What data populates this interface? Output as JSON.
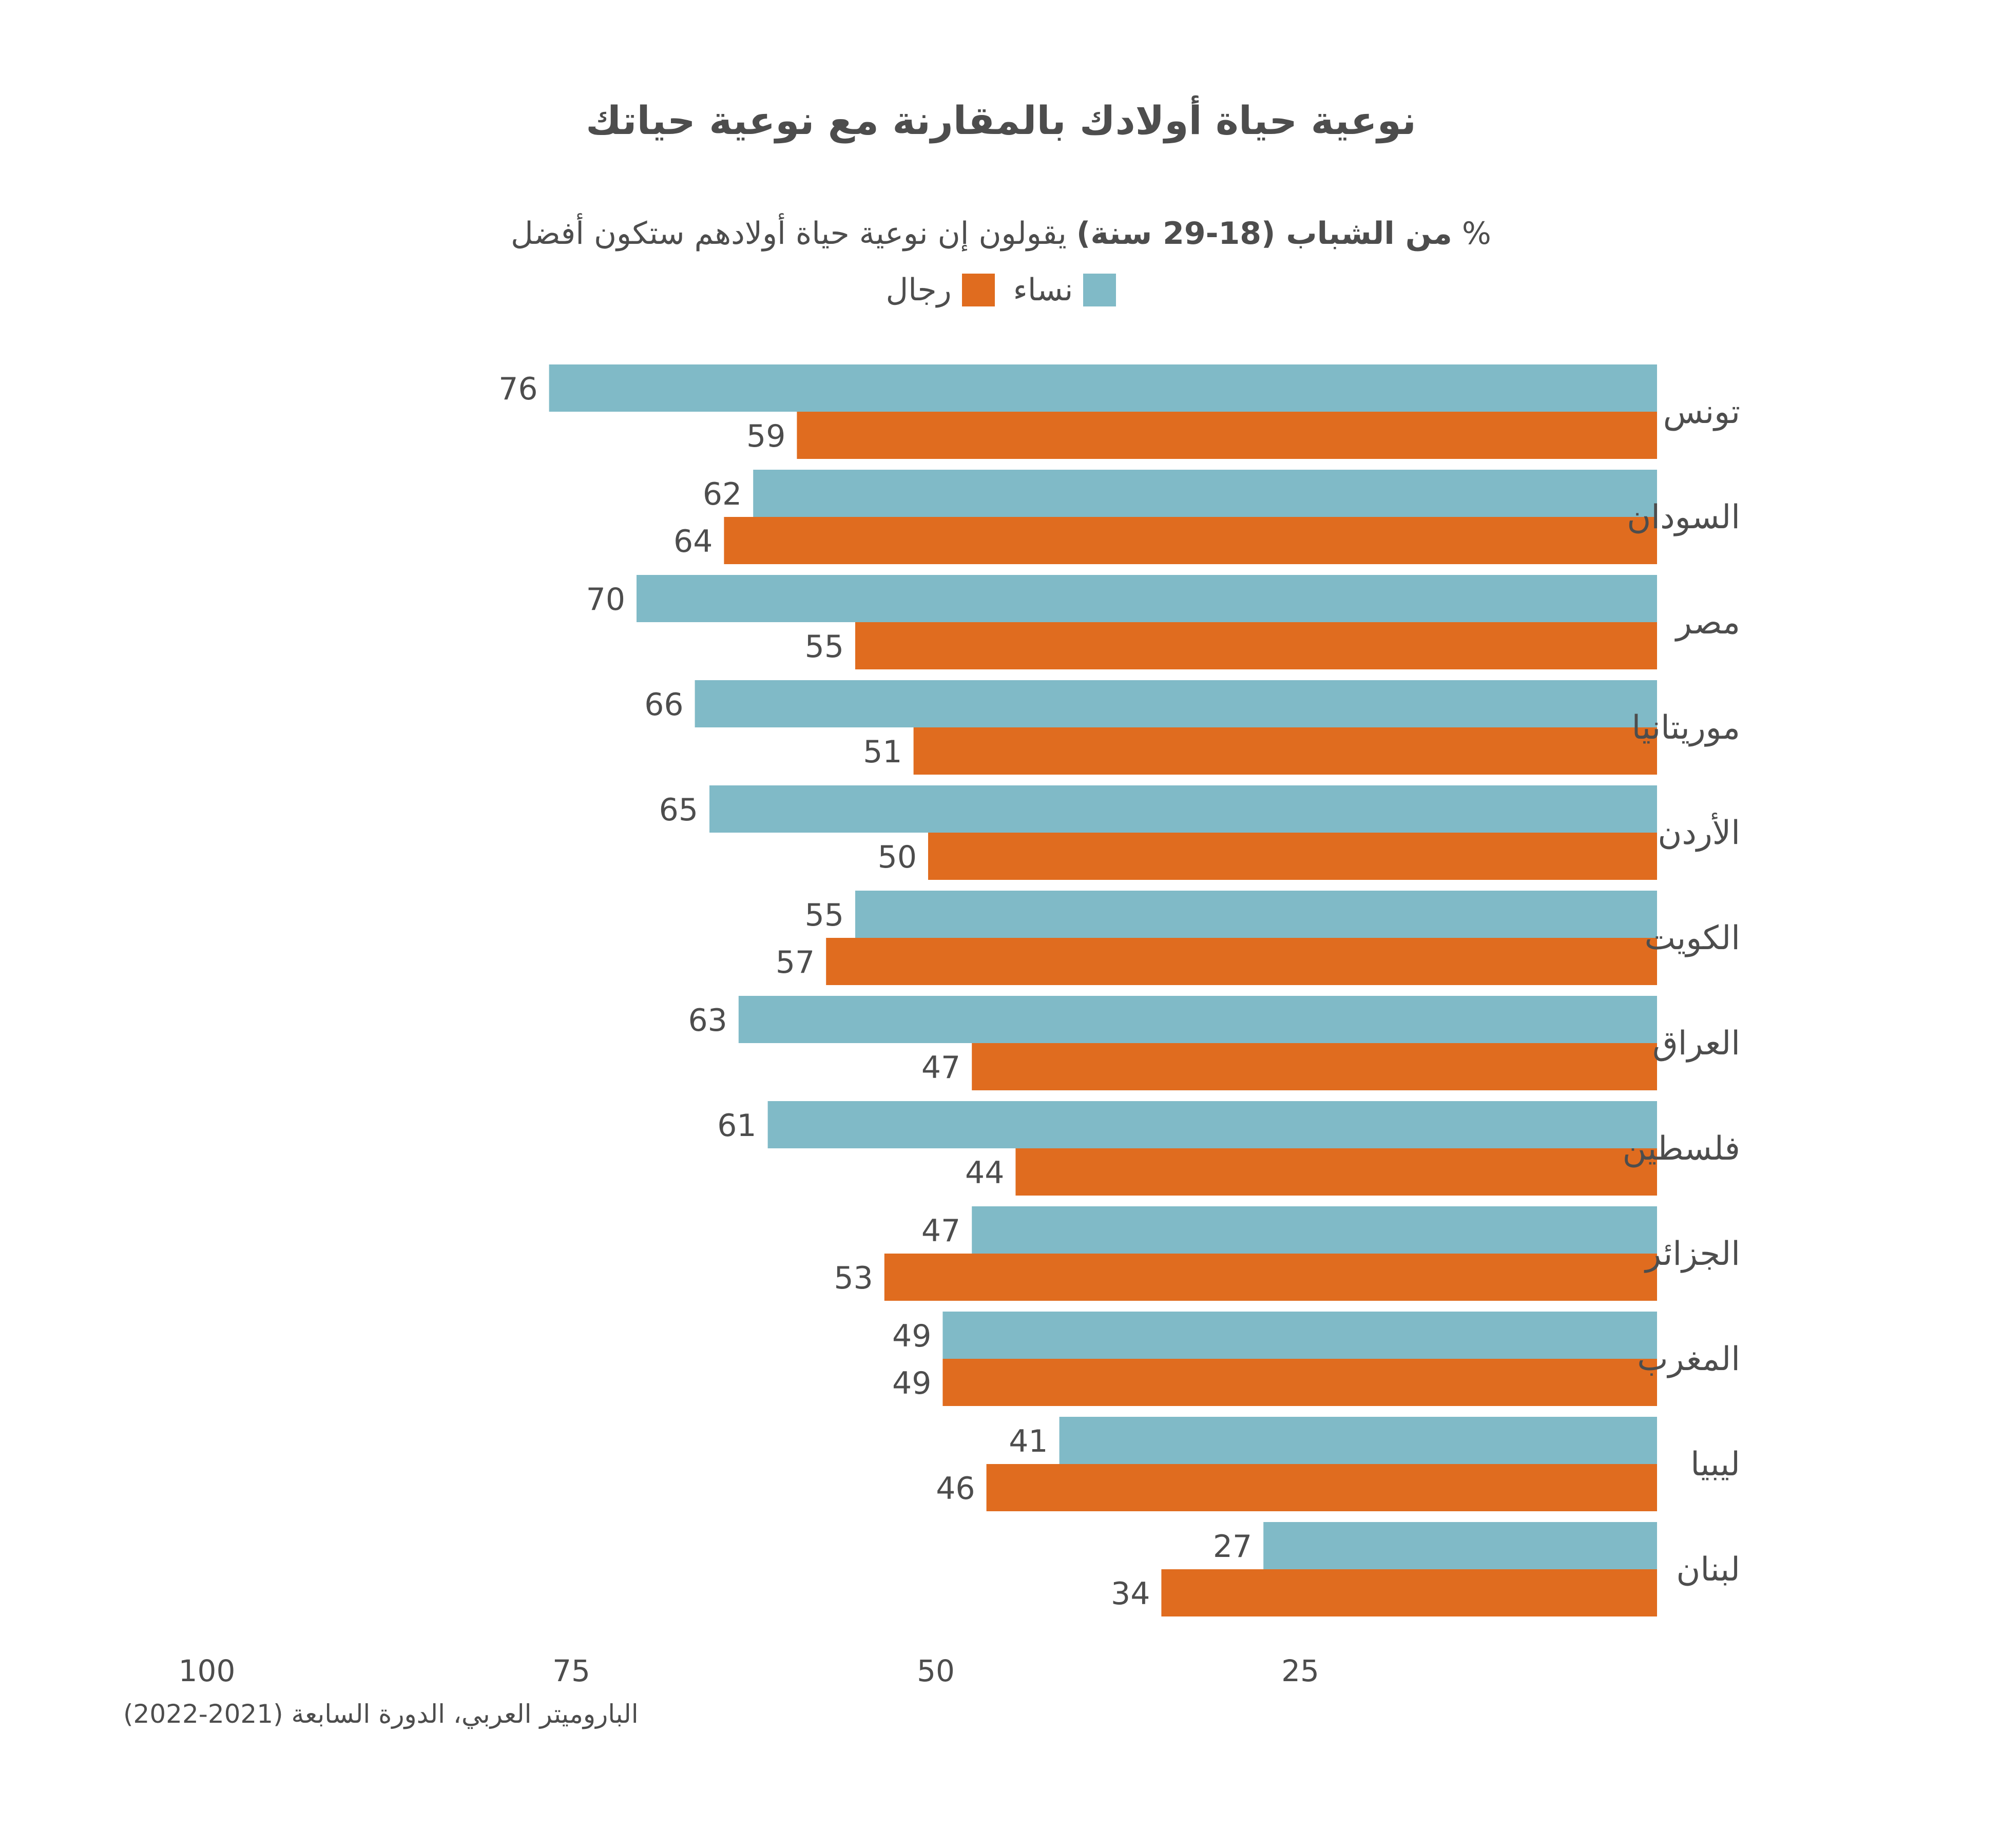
{
  "chart_data": {
    "type": "bar",
    "orientation": "horizontal",
    "title": "نوعية حياة أولادك بالمقارنة مع نوعية حياتك",
    "subtitle": {
      "prefix": "%",
      "bold": "من الشباب (18-29 سنة)",
      "rest": "يقولون إن نوعية حياة أولادهم ستكون أفضل"
    },
    "categories": [
      "تونس",
      "السودان",
      "مصر",
      "موريتانيا",
      "الأردن",
      "الكويت",
      "العراق",
      "فلسطين",
      "الجزائر",
      "المغرب",
      "ليبيا",
      "لبنان"
    ],
    "series": [
      {
        "name": "نساء",
        "color": "#80bac7",
        "values": [
          76,
          62,
          70,
          66,
          65,
          55,
          63,
          61,
          47,
          49,
          41,
          27
        ]
      },
      {
        "name": "رجال",
        "color": "#e06c1f",
        "values": [
          59,
          64,
          55,
          51,
          50,
          57,
          47,
          44,
          53,
          49,
          46,
          34
        ]
      }
    ],
    "x_axis": {
      "reversed": true,
      "range": [
        0,
        100
      ],
      "ticks": [
        100,
        75,
        50,
        25
      ]
    },
    "legend_position": "top-center",
    "grid": false
  },
  "source": "الباروميتر العربي، الدورة السابعة (2021-2022)"
}
